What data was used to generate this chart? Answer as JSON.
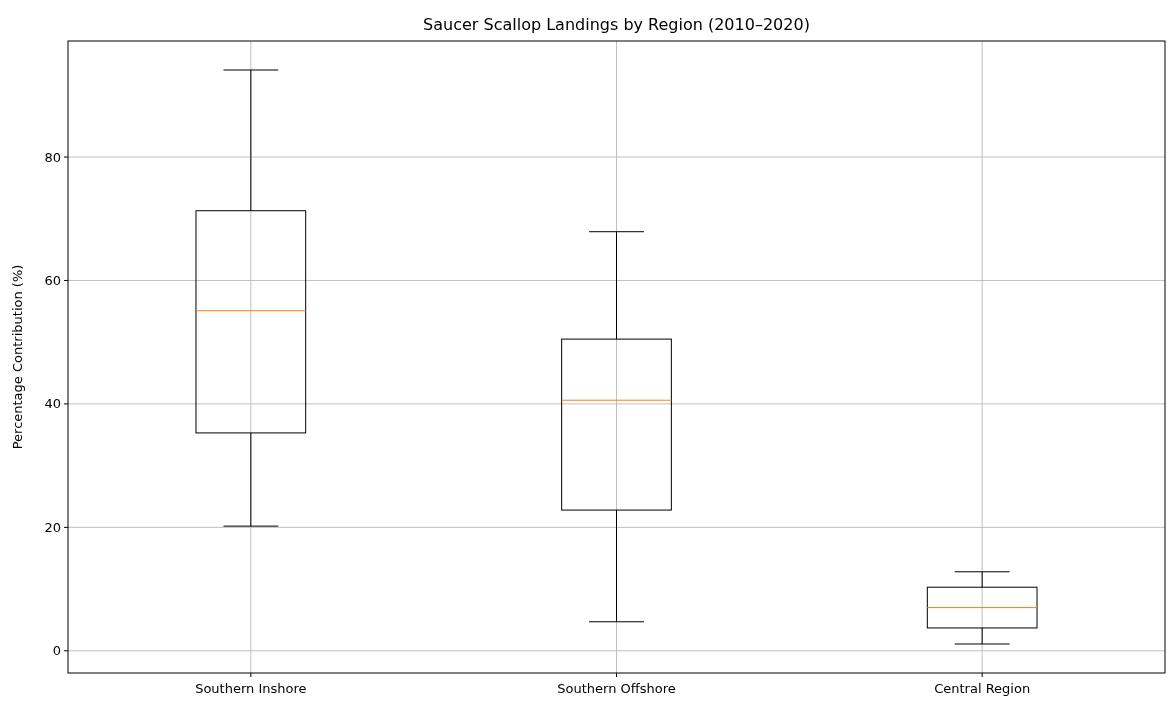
{
  "chart_data": {
    "type": "box",
    "title": "Saucer Scallop Landings by Region (2010–2020)",
    "ylabel": "Percentage Contribution (%)",
    "categories": [
      "Southern Inshore",
      "Southern Offshore",
      "Central Region"
    ],
    "boxes": [
      {
        "low": 20.2,
        "q1": 35.3,
        "median": 55.1,
        "q3": 71.3,
        "high": 94.1
      },
      {
        "low": 4.7,
        "q1": 22.8,
        "median": 40.6,
        "q3": 50.5,
        "high": 67.9
      },
      {
        "low": 1.1,
        "q1": 3.7,
        "median": 7.0,
        "q3": 10.3,
        "high": 12.8
      }
    ],
    "color": "#000000",
    "ylim": [
      -3.6,
      98.8
    ],
    "yticks": [
      0,
      20,
      40,
      60,
      80
    ],
    "grid": true
  }
}
